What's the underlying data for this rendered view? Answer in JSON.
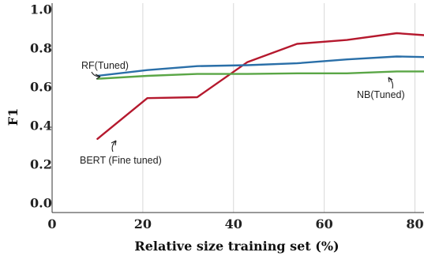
{
  "chart_data": {
    "type": "line",
    "title": "",
    "xlabel": "Relative size training set (%)",
    "ylabel": "F1",
    "xlim": [
      0,
      82
    ],
    "ylim": [
      -0.05,
      1.03
    ],
    "x_ticks": [
      0,
      20,
      40,
      60,
      80
    ],
    "y_ticks": [
      0.0,
      0.2,
      0.4,
      0.6,
      0.8,
      1.0
    ],
    "y_tick_labels": [
      "0.0",
      "0.2",
      "0.4",
      "0.6",
      "0.8",
      "1.0"
    ],
    "grid": true,
    "series": [
      {
        "name": "BERT (Fine tuned)",
        "color": "#b5192e",
        "x": [
          10,
          21,
          32,
          43,
          54,
          65,
          76,
          82
        ],
        "y": [
          0.33,
          0.54,
          0.545,
          0.725,
          0.82,
          0.84,
          0.875,
          0.865
        ]
      },
      {
        "name": "RF(Tuned)",
        "color": "#2a6fa8",
        "x": [
          10,
          21,
          32,
          43,
          54,
          65,
          76,
          82
        ],
        "y": [
          0.655,
          0.685,
          0.705,
          0.71,
          0.72,
          0.74,
          0.755,
          0.752
        ]
      },
      {
        "name": "NB(Tuned)",
        "color": "#5aa646",
        "x": [
          10,
          21,
          32,
          43,
          54,
          65,
          76,
          82
        ],
        "y": [
          0.64,
          0.655,
          0.665,
          0.665,
          0.668,
          0.668,
          0.678,
          0.678
        ]
      }
    ]
  }
}
